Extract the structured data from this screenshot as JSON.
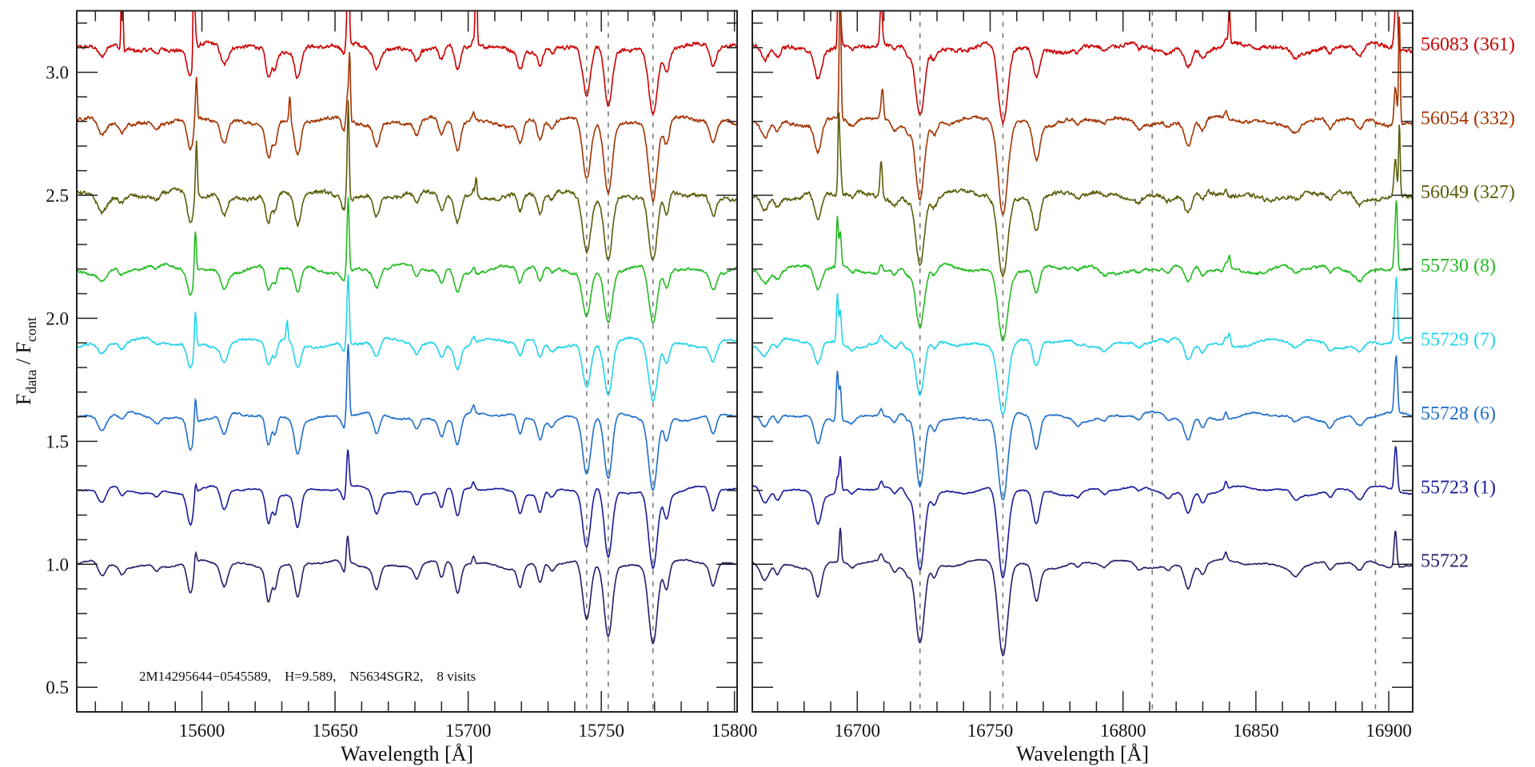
{
  "chart_data": {
    "type": "line",
    "ylabel_main": "F",
    "ylabel_sub1": "data",
    "ylabel_sep": " / F",
    "ylabel_sub2": "cont",
    "ylim": [
      0.4,
      3.25
    ],
    "y_ticks": [
      {
        "value": 0.5,
        "label": "0.5"
      },
      {
        "value": 1.0,
        "label": "1.0"
      },
      {
        "value": 1.5,
        "label": "1.5"
      },
      {
        "value": 2.0,
        "label": "2.0"
      },
      {
        "value": 2.5,
        "label": "2.5"
      },
      {
        "value": 3.0,
        "label": "3.0"
      }
    ],
    "y_minor_step": 0.1,
    "annotation": "2M14295644−0545589,    H=9.589,    N5634SGR2,    8 visits",
    "panels": [
      {
        "id": "left",
        "xlabel": "Wavelength [Å]",
        "xlim": [
          15553,
          15801
        ],
        "x_ticks": [
          {
            "value": 15600,
            "label": "15600"
          },
          {
            "value": 15650,
            "label": "15650"
          },
          {
            "value": 15700,
            "label": "15700"
          },
          {
            "value": 15750,
            "label": "15750"
          },
          {
            "value": 15800,
            "label": "15800"
          }
        ],
        "x_minor_step": 10,
        "reference_lines": [
          15744.5,
          15752.6,
          15769.4
        ],
        "absorption_lines": [
          [
            15562.5,
            0.06,
            1.5
          ],
          [
            15570,
            0.03,
            1
          ],
          [
            15583,
            0.02,
            1
          ],
          [
            15595.7,
            0.13,
            1.2
          ],
          [
            15608.4,
            0.09,
            1.3
          ],
          [
            15625,
            0.13,
            1
          ],
          [
            15627.5,
            0.08,
            0.8
          ],
          [
            15636,
            0.14,
            1.2
          ],
          [
            15653.5,
            0.05,
            1
          ],
          [
            15665.6,
            0.09,
            1.2
          ],
          [
            15680.7,
            0.05,
            1
          ],
          [
            15690,
            0.07,
            1
          ],
          [
            15696,
            0.12,
            1.2
          ],
          [
            15719.5,
            0.08,
            1
          ],
          [
            15727,
            0.08,
            1
          ],
          [
            15731.5,
            0.03,
            1
          ],
          [
            15744.5,
            0.24,
            1.5
          ],
          [
            15752.6,
            0.28,
            1.5
          ],
          [
            15769.4,
            0.31,
            1.6
          ],
          [
            15774.5,
            0.1,
            1
          ],
          [
            15792,
            0.09,
            1.2
          ]
        ],
        "emission_lines": [
          [
            15597.6,
            0.06,
            0.4
          ],
          [
            15654.7,
            0.13,
            0.5
          ],
          [
            15702,
            0.03,
            0.5
          ]
        ]
      },
      {
        "id": "right",
        "xlabel": "Wavelength [Å]",
        "xlim": [
          16660.5,
          16909
        ],
        "x_ticks": [
          {
            "value": 16700,
            "label": "16700"
          },
          {
            "value": 16750,
            "label": "16750"
          },
          {
            "value": 16800,
            "label": "16800"
          },
          {
            "value": 16850,
            "label": "16850"
          },
          {
            "value": 16900,
            "label": "16900"
          }
        ],
        "x_minor_step": 10,
        "reference_lines": [
          16723.6,
          16754.8,
          16811,
          16895
        ],
        "absorption_lines": [
          [
            16665.2,
            0.06,
            1.5
          ],
          [
            16670,
            0.04,
            1
          ],
          [
            16685.2,
            0.12,
            1.3
          ],
          [
            16698,
            0.02,
            1
          ],
          [
            16714,
            0.03,
            1
          ],
          [
            16719,
            0.03,
            1
          ],
          [
            16723.6,
            0.31,
            1.6
          ],
          [
            16729,
            0.05,
            1
          ],
          [
            16754.8,
            0.37,
            1.8
          ],
          [
            16767.4,
            0.14,
            1.3
          ],
          [
            16783,
            0.02,
            1
          ],
          [
            16793,
            0.02,
            1
          ],
          [
            16806,
            0.02,
            1
          ],
          [
            16817,
            0.02,
            1
          ],
          [
            16824.5,
            0.09,
            1.3
          ],
          [
            16830,
            0.04,
            1
          ],
          [
            16865,
            0.03,
            1.5
          ],
          [
            16878,
            0.03,
            1
          ],
          [
            16889,
            0.04,
            1.5
          ]
        ],
        "emission_lines": [
          [
            16693.6,
            0.14,
            0.4
          ],
          [
            16709,
            0.03,
            0.6
          ],
          [
            16838.7,
            0.03,
            0.5
          ],
          [
            16902.5,
            0.15,
            0.5
          ]
        ]
      }
    ],
    "series": [
      {
        "name": "56083 (361)",
        "mjd": 56083,
        "offset": 3.1,
        "color": "#cc0000",
        "depth_scale": 0.85,
        "noise": 0.012,
        "spikes": [
          [
            15570,
            0.5,
            0.3
          ],
          [
            15597,
            0.45,
            0.3
          ],
          [
            15655,
            0.5,
            0.3
          ],
          [
            15703,
            0.45,
            0.3
          ],
          [
            16693,
            0.6,
            0.3
          ],
          [
            16709,
            0.15,
            0.4
          ],
          [
            16840,
            0.15,
            0.3
          ],
          [
            16903,
            0.3,
            0.3
          ]
        ]
      },
      {
        "name": "56054 (332)",
        "mjd": 56054,
        "offset": 2.8,
        "color": "#a33300",
        "depth_scale": 1.0,
        "noise": 0.01,
        "spikes": [
          [
            15598,
            0.15,
            0.3
          ],
          [
            15633,
            0.1,
            0.3
          ],
          [
            15655.5,
            0.25,
            0.3
          ],
          [
            16693.5,
            0.45,
            0.3
          ],
          [
            16709.5,
            0.1,
            0.4
          ],
          [
            16904,
            0.45,
            0.3
          ]
        ]
      },
      {
        "name": "56049 (327)",
        "mjd": 56049,
        "offset": 2.5,
        "color": "#5c5c0a",
        "depth_scale": 0.9,
        "noise": 0.012,
        "spikes": [
          [
            15598,
            0.2,
            0.3
          ],
          [
            15655,
            0.3,
            0.3
          ],
          [
            15703,
            0.08,
            0.3
          ],
          [
            16693,
            0.3,
            0.3
          ],
          [
            16709,
            0.12,
            0.4
          ],
          [
            16904,
            0.3,
            0.3
          ]
        ]
      },
      {
        "name": "55730 (8)",
        "mjd": 55730,
        "offset": 2.2,
        "color": "#22bb22",
        "depth_scale": 0.75,
        "noise": 0.008,
        "spikes": [
          [
            15597.5,
            0.13,
            0.35
          ],
          [
            15655,
            0.2,
            0.35
          ],
          [
            16692.5,
            0.2,
            0.35
          ],
          [
            16840,
            0.06,
            0.4
          ],
          [
            16903,
            0.18,
            0.35
          ]
        ]
      },
      {
        "name": "55729 (7)",
        "mjd": 55729,
        "offset": 1.9,
        "color": "#22d4ea",
        "depth_scale": 0.75,
        "noise": 0.007,
        "spikes": [
          [
            15597.5,
            0.1,
            0.35
          ],
          [
            15632,
            0.08,
            0.35
          ],
          [
            15655,
            0.18,
            0.35
          ],
          [
            16692.5,
            0.2,
            0.35
          ],
          [
            16840,
            0.05,
            0.4
          ],
          [
            16903,
            0.16,
            0.35
          ]
        ]
      },
      {
        "name": "55728 (6)",
        "mjd": 55728,
        "offset": 1.6,
        "color": "#1e6ecc",
        "depth_scale": 0.95,
        "noise": 0.005,
        "spikes": [
          [
            15597.5,
            0.06,
            0.4
          ],
          [
            15655,
            0.2,
            0.4
          ],
          [
            16692.5,
            0.2,
            0.4
          ],
          [
            16903,
            0.12,
            0.4
          ]
        ]
      },
      {
        "name": "55723 (1)",
        "mjd": 55723,
        "offset": 1.3,
        "color": "#1a1a9c",
        "depth_scale": 1.0,
        "noise": 0.004,
        "spikes": [
          [
            15655,
            0.05,
            0.4
          ],
          [
            16692.5,
            0.06,
            0.4
          ],
          [
            16903,
            0.05,
            0.5
          ]
        ]
      },
      {
        "name": "55722",
        "mjd": 55722,
        "offset": 1.0,
        "color": "#2a1a6a",
        "depth_scale": 1.0,
        "noise": 0.004,
        "spikes": []
      }
    ]
  }
}
